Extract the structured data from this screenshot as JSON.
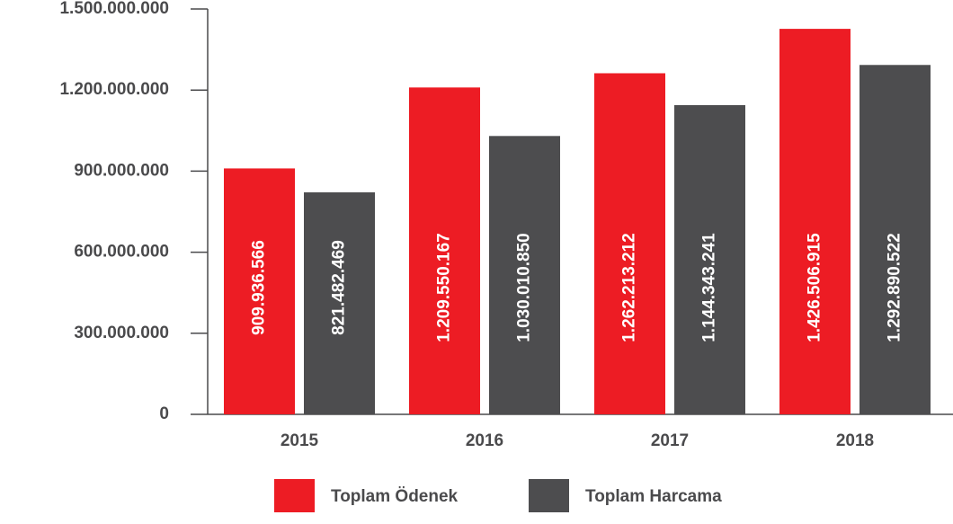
{
  "chart_data": {
    "type": "bar",
    "categories": [
      "2015",
      "2016",
      "2017",
      "2018"
    ],
    "series": [
      {
        "name": "Toplam Ödenek",
        "color": "#ed1c24",
        "values": [
          909936566,
          1209550167,
          1262213212,
          1426506915
        ],
        "value_labels": [
          "909.936.566",
          "1.209.550.167",
          "1.262.213.212",
          "1.426.506.915"
        ]
      },
      {
        "name": "Toplam Harcama",
        "color": "#4d4d4f",
        "values": [
          821482469,
          1030010850,
          1144343241,
          1292890522
        ],
        "value_labels": [
          "821.482.469",
          "1.030.010.850",
          "1.144.343.241",
          "1.292.890.522"
        ]
      }
    ],
    "ylim": [
      0,
      1500000000
    ],
    "yticks": [
      0,
      {
        "value": 300000000,
        "label": "300.000.000"
      },
      {
        "value": 600000000,
        "label": "600.000.000"
      },
      {
        "value": 900000000,
        "label": "900.000.000"
      },
      {
        "value": 1200000000,
        "label": "1.200.000.000"
      },
      {
        "value": 1500000000,
        "label": "1.500.000.000"
      }
    ],
    "grid": false
  }
}
